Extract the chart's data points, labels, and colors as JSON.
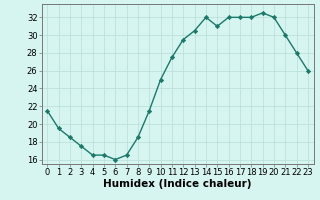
{
  "x": [
    0,
    1,
    2,
    3,
    4,
    5,
    6,
    7,
    8,
    9,
    10,
    11,
    12,
    13,
    14,
    15,
    16,
    17,
    18,
    19,
    20,
    21,
    22,
    23
  ],
  "y": [
    21.5,
    19.5,
    18.5,
    17.5,
    16.5,
    16.5,
    16.0,
    16.5,
    18.5,
    21.5,
    25.0,
    27.5,
    29.5,
    30.5,
    32.0,
    31.0,
    32.0,
    32.0,
    32.0,
    32.5,
    32.0,
    30.0,
    28.0,
    26.0
  ],
  "line_color": "#1a7a6a",
  "marker": "D",
  "markersize": 2.2,
  "linewidth": 1.0,
  "bg_color": "#d6f5f0",
  "grid_color": "#b8ddd8",
  "xlabel": "Humidex (Indice chaleur)",
  "xlim": [
    -0.5,
    23.5
  ],
  "ylim": [
    15.5,
    33.5
  ],
  "yticks": [
    16,
    18,
    20,
    22,
    24,
    26,
    28,
    30,
    32
  ],
  "xticks": [
    0,
    1,
    2,
    3,
    4,
    5,
    6,
    7,
    8,
    9,
    10,
    11,
    12,
    13,
    14,
    15,
    16,
    17,
    18,
    19,
    20,
    21,
    22,
    23
  ],
  "tick_fontsize": 6,
  "label_fontsize": 7.5,
  "spine_color": "#777777"
}
